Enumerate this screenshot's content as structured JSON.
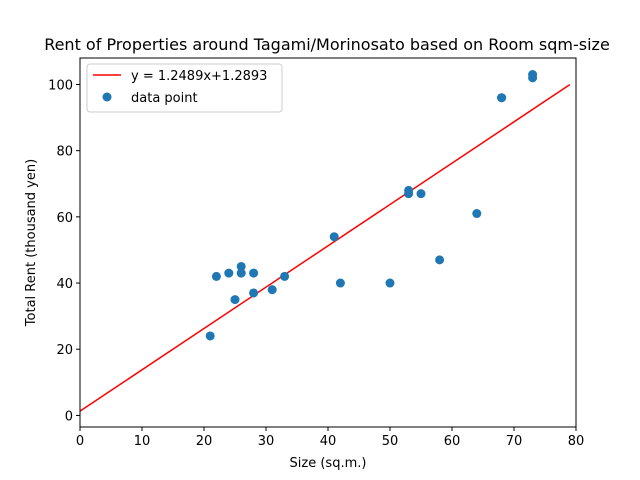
{
  "chart_data": {
    "type": "scatter",
    "title": "Rent of Properties around Tagami/Morinosato based on Room sqm-size",
    "xlabel": "Size (sq.m.)",
    "ylabel": "Total Rent (thousand yen)",
    "xlim": [
      0,
      80
    ],
    "ylim": [
      -3.5,
      108
    ],
    "xticks": [
      0,
      10,
      20,
      30,
      40,
      50,
      60,
      70,
      80
    ],
    "yticks": [
      0,
      20,
      40,
      60,
      80,
      100
    ],
    "grid": false,
    "legend_position": "top-left",
    "colors": {
      "points": "#1f77b4",
      "fit": "#ff0000"
    },
    "fit_line": {
      "name": "y = 1.2489x+1.2893",
      "slope": 1.2489,
      "intercept": 1.2893,
      "x_range": [
        0,
        79
      ]
    },
    "series": [
      {
        "name": "data point",
        "points": [
          [
            21,
            24
          ],
          [
            22,
            42
          ],
          [
            24,
            43
          ],
          [
            25,
            35
          ],
          [
            26,
            45
          ],
          [
            26,
            43
          ],
          [
            28,
            43
          ],
          [
            28,
            37
          ],
          [
            31,
            38
          ],
          [
            33,
            42
          ],
          [
            41,
            54
          ],
          [
            42,
            40
          ],
          [
            50,
            40
          ],
          [
            53,
            68
          ],
          [
            53,
            67
          ],
          [
            55,
            67
          ],
          [
            58,
            47
          ],
          [
            64,
            61
          ],
          [
            68,
            96
          ],
          [
            68,
            96
          ],
          [
            73,
            103
          ],
          [
            73,
            102
          ]
        ]
      }
    ]
  }
}
